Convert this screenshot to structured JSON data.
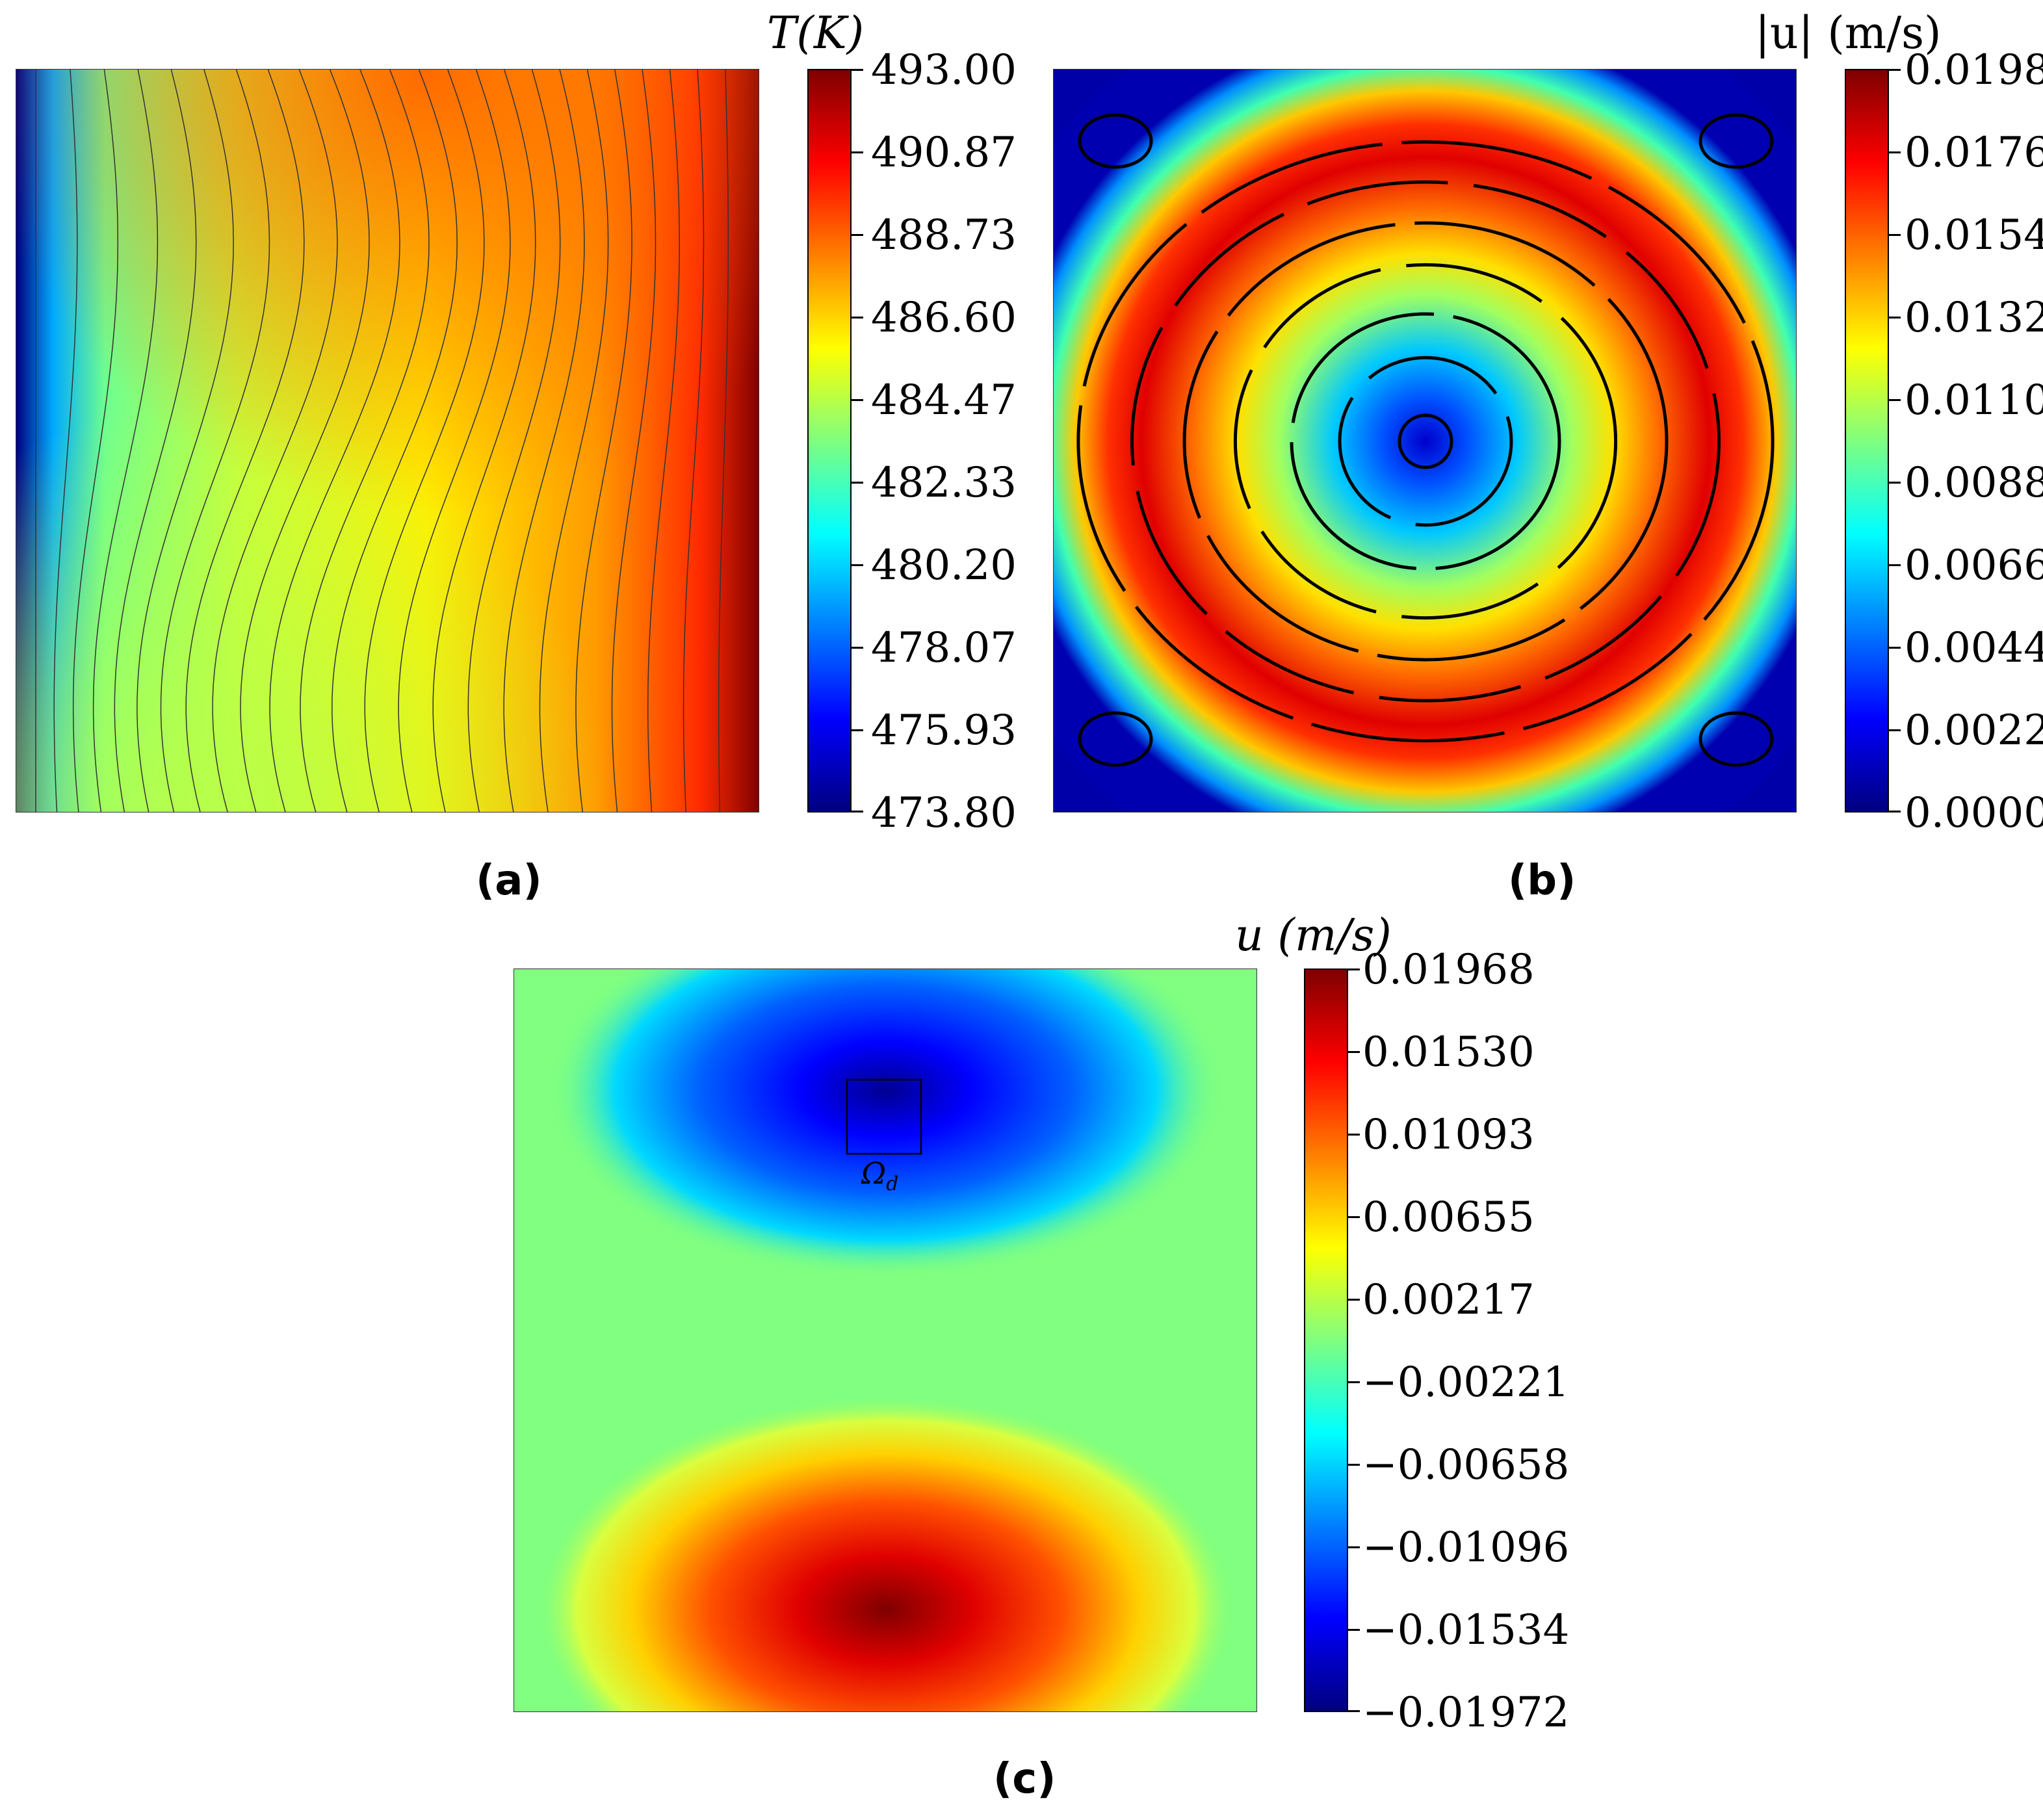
{
  "panels": [
    {
      "label": "(a)",
      "colorbar_title": "T(K)",
      "ticks": [
        "493.00",
        "490.87",
        "488.73",
        "486.60",
        "484.47",
        "482.33",
        "480.20",
        "478.07",
        "475.93",
        "473.80"
      ]
    },
    {
      "label": "(b)",
      "colorbar_title": "|u| (m/s)",
      "ticks": [
        "0.0198",
        "0.0176",
        "0.0154",
        "0.0132",
        "0.0110",
        "0.0088",
        "0.0066",
        "0.0044",
        "0.0022",
        "0.0000"
      ]
    },
    {
      "label": "(c)",
      "colorbar_title": "u (m/s)",
      "annotation": "Ω",
      "annotation_sub": "d",
      "ticks": [
        "0.01968",
        "0.01530",
        "0.01093",
        "0.00655",
        "0.00217",
        "−0.00221",
        "−0.00658",
        "−0.01096",
        "−0.01534",
        "−0.01972"
      ]
    }
  ],
  "colormap": "jet",
  "colors": {
    "jet": [
      "#00007f",
      "#0000ff",
      "#007fff",
      "#00ffff",
      "#7fff7f",
      "#ffff00",
      "#ff7f00",
      "#ff0000",
      "#7f0000"
    ]
  },
  "chart_data": [
    {
      "type": "heatmap",
      "label": "(a)",
      "quantity": "T(K)",
      "colorbar_range": [
        473.8,
        493.0
      ],
      "colorbar_ticks": [
        493.0,
        490.87,
        488.73,
        486.6,
        484.47,
        482.33,
        480.2,
        478.07,
        475.93,
        473.8
      ],
      "description_of_field": "temperature contours, cold (blue) at left wall, hot (red) at right wall, wavy isotherms"
    },
    {
      "type": "heatmap",
      "label": "(b)",
      "quantity": "|u| (m/s)",
      "colorbar_range": [
        0.0,
        0.0198
      ],
      "colorbar_ticks": [
        0.0198,
        0.0176,
        0.0154,
        0.0132,
        0.011,
        0.0088,
        0.0066,
        0.0044,
        0.0022,
        0.0
      ],
      "streamlines": "single central clockwise vortex with small corner vortices"
    },
    {
      "type": "heatmap",
      "label": "(c)",
      "quantity": "u (m/s)",
      "colorbar_range": [
        -0.01972,
        0.01968
      ],
      "colorbar_ticks": [
        0.01968,
        0.0153,
        0.01093,
        0.00655,
        0.00217,
        -0.00221,
        -0.00658,
        -0.01096,
        -0.01534,
        -0.01972
      ],
      "annotation": "Ω_d"
    }
  ]
}
